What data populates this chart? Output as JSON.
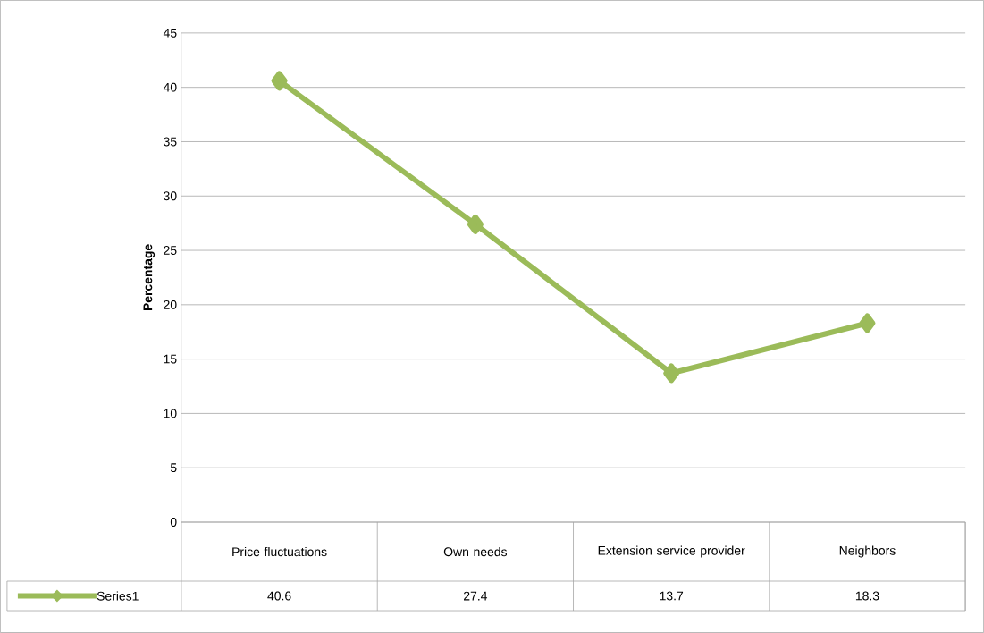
{
  "chart_data": {
    "type": "line",
    "ylabel": "Percentage",
    "categories": [
      "Price fluctuations",
      "Own needs",
      "Extension service provider",
      "Neighbors"
    ],
    "series": [
      {
        "name": "Series1",
        "color": "#9bbb59",
        "values": [
          40.6,
          27.4,
          13.7,
          18.3
        ]
      }
    ],
    "ylim": [
      0,
      45
    ],
    "yticks": [
      0,
      5,
      10,
      15,
      20,
      25,
      30,
      35,
      40,
      45
    ],
    "grid": "y",
    "legend": "bottom",
    "data_labels": true,
    "marker": "diamond",
    "line_style": "solid"
  }
}
